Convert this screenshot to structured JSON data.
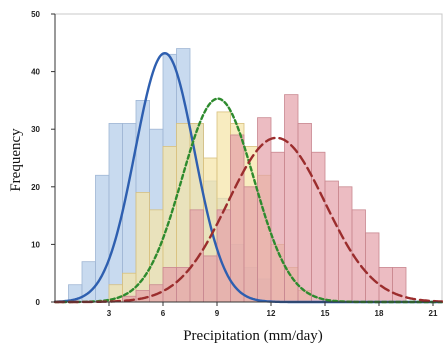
{
  "chart_data": {
    "type": "histogram",
    "xlabel": "Precipitation (mm/day)",
    "ylabel": "Frequency",
    "xlim": [
      0,
      21.5
    ],
    "ylim": [
      0,
      50
    ],
    "x_ticks": [
      "3",
      "6",
      "9",
      "12",
      "15",
      "18",
      "21"
    ],
    "y_ticks": [
      "0",
      "10",
      "20",
      "30",
      "40",
      "50"
    ],
    "bin_width": 0.75,
    "grid": false,
    "series": [
      {
        "color": "#b9cfea",
        "edge": "#9fb6d4",
        "fill_opacity": 0.78,
        "bins": [
          {
            "x0": 0.75,
            "value": 3
          },
          {
            "x0": 1.5,
            "value": 7
          },
          {
            "x0": 2.25,
            "value": 22
          },
          {
            "x0": 3.0,
            "value": 31
          },
          {
            "x0": 3.75,
            "value": 31
          },
          {
            "x0": 4.5,
            "value": 35
          },
          {
            "x0": 5.25,
            "value": 30
          },
          {
            "x0": 6.0,
            "value": 43
          },
          {
            "x0": 6.75,
            "value": 44
          },
          {
            "x0": 7.5,
            "value": 31
          },
          {
            "x0": 8.25,
            "value": 21
          },
          {
            "x0": 9.0,
            "value": 18
          },
          {
            "x0": 9.75,
            "value": 10
          },
          {
            "x0": 10.5,
            "value": 6
          },
          {
            "x0": 11.25,
            "value": 4
          }
        ],
        "fit_curve": {
          "style": "solid",
          "color": "#2e5fb0",
          "mean": 6.1,
          "peak": 43.2,
          "sd": 1.65
        }
      },
      {
        "color": "#f5e4a8",
        "edge": "#d8c07e",
        "fill_opacity": 0.72,
        "bins": [
          {
            "x0": 3.0,
            "value": 3
          },
          {
            "x0": 3.75,
            "value": 5
          },
          {
            "x0": 4.5,
            "value": 19
          },
          {
            "x0": 5.25,
            "value": 16
          },
          {
            "x0": 6.0,
            "value": 27
          },
          {
            "x0": 6.75,
            "value": 31
          },
          {
            "x0": 7.5,
            "value": 31
          },
          {
            "x0": 8.25,
            "value": 25
          },
          {
            "x0": 9.0,
            "value": 33
          },
          {
            "x0": 9.75,
            "value": 31
          },
          {
            "x0": 10.5,
            "value": 27
          },
          {
            "x0": 11.25,
            "value": 22
          },
          {
            "x0": 12.0,
            "value": 10
          },
          {
            "x0": 12.75,
            "value": 6
          },
          {
            "x0": 13.5,
            "value": 2
          }
        ],
        "fit_curve": {
          "style": "dotted",
          "color": "#2e8b2e",
          "mean": 9.05,
          "peak": 35.3,
          "sd": 2.0
        }
      },
      {
        "color": "#e4a0a8",
        "edge": "#c98890",
        "fill_opacity": 0.7,
        "bins": [
          {
            "x0": 3.75,
            "value": 1
          },
          {
            "x0": 4.5,
            "value": 2
          },
          {
            "x0": 5.25,
            "value": 3
          },
          {
            "x0": 6.0,
            "value": 6
          },
          {
            "x0": 6.75,
            "value": 6
          },
          {
            "x0": 7.5,
            "value": 16
          },
          {
            "x0": 8.25,
            "value": 8
          },
          {
            "x0": 9.0,
            "value": 16
          },
          {
            "x0": 9.75,
            "value": 29
          },
          {
            "x0": 10.5,
            "value": 20
          },
          {
            "x0": 11.25,
            "value": 32
          },
          {
            "x0": 12.0,
            "value": 26
          },
          {
            "x0": 12.75,
            "value": 36
          },
          {
            "x0": 13.5,
            "value": 31
          },
          {
            "x0": 14.25,
            "value": 26
          },
          {
            "x0": 15.0,
            "value": 21
          },
          {
            "x0": 15.75,
            "value": 20
          },
          {
            "x0": 16.5,
            "value": 16
          },
          {
            "x0": 17.25,
            "value": 12
          },
          {
            "x0": 18.0,
            "value": 6
          },
          {
            "x0": 18.75,
            "value": 6
          }
        ],
        "fit_curve": {
          "style": "dashed",
          "color": "#9b2d2d",
          "mean": 12.3,
          "peak": 28.5,
          "sd": 2.7
        }
      }
    ]
  }
}
